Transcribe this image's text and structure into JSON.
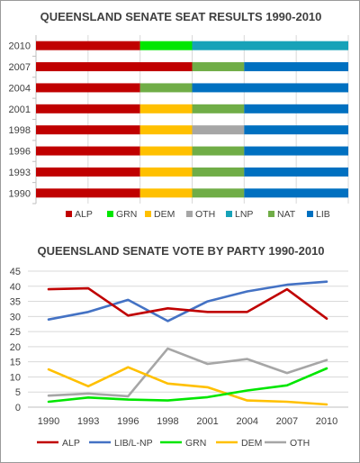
{
  "colors": {
    "ALP": "#c00000",
    "GRN": "#00e600",
    "DEM": "#ffc000",
    "OTH": "#a6a6a6",
    "LNP": "#17a2b8",
    "NAT": "#70ad47",
    "LIB": "#0070c0",
    "LIB/L-NP": "#4472c4"
  },
  "chart_data": [
    {
      "type": "bar",
      "stacked": true,
      "orientation": "horizontal",
      "title": "QUEENSLAND SENATE SEAT RESULTS 1990-2010",
      "categories": [
        "2010",
        "2007",
        "2004",
        "2001",
        "1998",
        "1996",
        "1993",
        "1990"
      ],
      "series": [
        {
          "name": "ALP",
          "values": [
            2,
            3,
            2,
            2,
            2,
            2,
            2,
            2
          ]
        },
        {
          "name": "GRN",
          "values": [
            1,
            0,
            0,
            0,
            0,
            0,
            0,
            0
          ]
        },
        {
          "name": "DEM",
          "values": [
            0,
            0,
            0,
            1,
            1,
            1,
            1,
            1
          ]
        },
        {
          "name": "OTH",
          "values": [
            0,
            0,
            0,
            0,
            1,
            0,
            0,
            0
          ]
        },
        {
          "name": "LNP",
          "values": [
            3,
            0,
            0,
            0,
            0,
            0,
            0,
            0
          ]
        },
        {
          "name": "NAT",
          "values": [
            0,
            1,
            1,
            1,
            0,
            1,
            1,
            1
          ]
        },
        {
          "name": "LIB",
          "values": [
            0,
            2,
            3,
            2,
            2,
            2,
            2,
            2
          ]
        }
      ],
      "xlim": [
        0,
        6
      ],
      "legend": "bottom",
      "grid": true
    },
    {
      "type": "line",
      "title": "QUEENSLAND SENATE VOTE BY PARTY 1990-2010",
      "x": [
        "1990",
        "1993",
        "1996",
        "1998",
        "2001",
        "2004",
        "2007",
        "2010"
      ],
      "series": [
        {
          "name": "ALP",
          "values": [
            39,
            39.3,
            30.3,
            32.7,
            31.5,
            31.5,
            39,
            29.3
          ]
        },
        {
          "name": "LIB/L-NP",
          "values": [
            29,
            31.5,
            35.5,
            28.5,
            35,
            38.3,
            40.5,
            41.5
          ]
        },
        {
          "name": "GRN",
          "values": [
            1.8,
            3.2,
            2.5,
            2.2,
            3.3,
            5.5,
            7.2,
            12.8
          ]
        },
        {
          "name": "DEM",
          "values": [
            12.5,
            6.9,
            13.2,
            7.8,
            6.6,
            2.2,
            1.8,
            0.9
          ]
        },
        {
          "name": "OTH",
          "values": [
            3.8,
            4.5,
            3.6,
            19.4,
            14.3,
            15.9,
            11.3,
            15.6
          ]
        }
      ],
      "yticks": [
        "0",
        "5",
        "10",
        "15",
        "20",
        "25",
        "30",
        "35",
        "40",
        "45"
      ],
      "ylim": [
        0,
        45
      ],
      "legend": "bottom",
      "grid": true
    }
  ]
}
